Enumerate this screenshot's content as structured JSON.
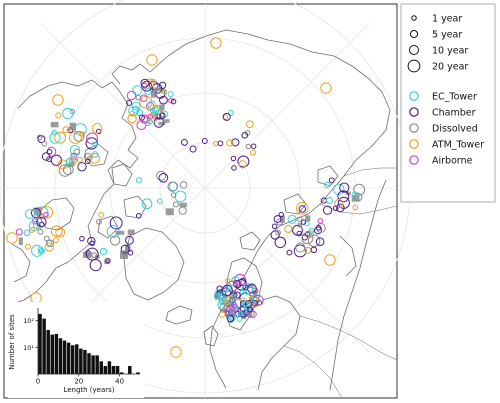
{
  "legend": {
    "size_entries": [
      {
        "label": "1 year",
        "value": 1
      },
      {
        "label": "5 year",
        "value": 5
      },
      {
        "label": "10 year",
        "value": 10
      },
      {
        "label": "20 year",
        "value": 20
      }
    ],
    "type_entries": [
      {
        "label": "EC_Tower",
        "color": "#35d3dc"
      },
      {
        "label": "Chamber",
        "color": "#4b1d8c"
      },
      {
        "label": "Dissolved",
        "color": "#8a8a8a"
      },
      {
        "label": "ATM_Tower",
        "color": "#f0a020"
      },
      {
        "label": "Airborne",
        "color": "#d040c8"
      }
    ]
  },
  "colors": {
    "coastline": "#6e6e6e",
    "graticule": "#e6e6e6",
    "histogram_bar": "#111111",
    "frame": "#333333"
  },
  "chart_data": {
    "type": "bar",
    "xlabel": "Length (years)",
    "ylabel": "Number of sites",
    "x_ticks": [
      0,
      20,
      40
    ],
    "y_ticks": [
      "10¹",
      "10²"
    ],
    "bin_starts": [
      0,
      2,
      4,
      6,
      8,
      10,
      12,
      14,
      16,
      18,
      20,
      22,
      24,
      26,
      28,
      30,
      32,
      34,
      36,
      38,
      40,
      42,
      44,
      46,
      48
    ],
    "values": [
      180,
      120,
      45,
      30,
      32,
      22,
      18,
      15,
      12,
      13,
      9,
      8,
      6,
      5,
      5,
      3,
      2,
      3,
      2,
      2,
      1,
      0,
      2,
      0,
      1
    ],
    "ylim": [
      1,
      300
    ],
    "log_y": true
  }
}
